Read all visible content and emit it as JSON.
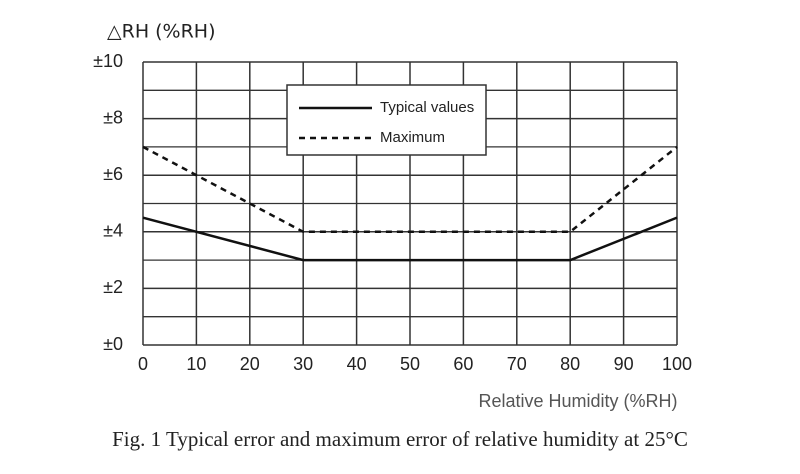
{
  "chart_data": {
    "type": "line",
    "y_axis_label": "△RH (%RH)",
    "x_axis_label": "Relative Humidity (%RH)",
    "caption": "Fig. 1 Typical error and maximum error of relative humidity at 25°C",
    "xlim": [
      0,
      100
    ],
    "xticks": [
      0,
      10,
      20,
      30,
      40,
      50,
      60,
      70,
      80,
      90,
      100
    ],
    "ylim": [
      0,
      10
    ],
    "yticks": [
      {
        "value": 0,
        "label": "±0"
      },
      {
        "value": 2,
        "label": "±2"
      },
      {
        "value": 4,
        "label": "±4"
      },
      {
        "value": 6,
        "label": "±6"
      },
      {
        "value": 8,
        "label": "±8"
      },
      {
        "value": 10,
        "label": "±10"
      }
    ],
    "y_minor_grid": [
      1,
      3,
      5,
      7,
      9
    ],
    "grid": true,
    "series": [
      {
        "name": "Typical values",
        "color": "#111111",
        "dash": "solid",
        "x": [
          0,
          30,
          80,
          100
        ],
        "values": [
          4.5,
          3,
          3,
          4.5
        ]
      },
      {
        "name": "Maximum",
        "color": "#111111",
        "dash": "dashed",
        "x": [
          0,
          30,
          80,
          100
        ],
        "values": [
          7,
          4,
          4,
          7
        ]
      }
    ]
  }
}
